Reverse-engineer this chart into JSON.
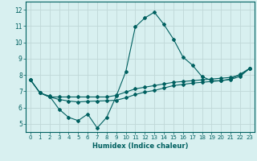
{
  "xlabel": "Humidex (Indice chaleur)",
  "background_color": "#d8f0f0",
  "grid_color": "#c0d8d8",
  "line_color": "#006060",
  "xlim": [
    -0.5,
    23.5
  ],
  "ylim": [
    4.5,
    12.5
  ],
  "yticks": [
    5,
    6,
    7,
    8,
    9,
    10,
    11,
    12
  ],
  "xticks": [
    0,
    1,
    2,
    3,
    4,
    5,
    6,
    7,
    8,
    9,
    10,
    11,
    12,
    13,
    14,
    15,
    16,
    17,
    18,
    19,
    20,
    21,
    22,
    23
  ],
  "series1_x": [
    0,
    1,
    2,
    3,
    4,
    5,
    6,
    7,
    8,
    9,
    10,
    11,
    12,
    13,
    14,
    15,
    16,
    17,
    18,
    19,
    20,
    21,
    22,
    23
  ],
  "series1_y": [
    7.7,
    6.9,
    6.7,
    5.9,
    5.4,
    5.2,
    5.6,
    4.75,
    5.4,
    6.7,
    8.2,
    10.95,
    11.5,
    11.85,
    11.1,
    10.2,
    9.1,
    8.6,
    7.9,
    7.65,
    7.65,
    7.75,
    8.05,
    8.4
  ],
  "series2_x": [
    0,
    1,
    2,
    3,
    4,
    5,
    6,
    7,
    8,
    9,
    10,
    11,
    12,
    13,
    14,
    15,
    16,
    17,
    18,
    19,
    20,
    21,
    22,
    23
  ],
  "series2_y": [
    7.7,
    6.9,
    6.65,
    6.65,
    6.65,
    6.65,
    6.65,
    6.65,
    6.65,
    6.75,
    6.95,
    7.15,
    7.25,
    7.35,
    7.45,
    7.55,
    7.6,
    7.65,
    7.7,
    7.75,
    7.8,
    7.85,
    8.0,
    8.4
  ],
  "series3_x": [
    0,
    1,
    2,
    3,
    4,
    5,
    6,
    7,
    8,
    9,
    10,
    11,
    12,
    13,
    14,
    15,
    16,
    17,
    18,
    19,
    20,
    21,
    22,
    23
  ],
  "series3_y": [
    7.7,
    6.9,
    6.65,
    6.5,
    6.4,
    6.35,
    6.38,
    6.4,
    6.42,
    6.45,
    6.6,
    6.8,
    6.95,
    7.05,
    7.2,
    7.35,
    7.42,
    7.5,
    7.55,
    7.6,
    7.65,
    7.72,
    7.92,
    8.4
  ]
}
